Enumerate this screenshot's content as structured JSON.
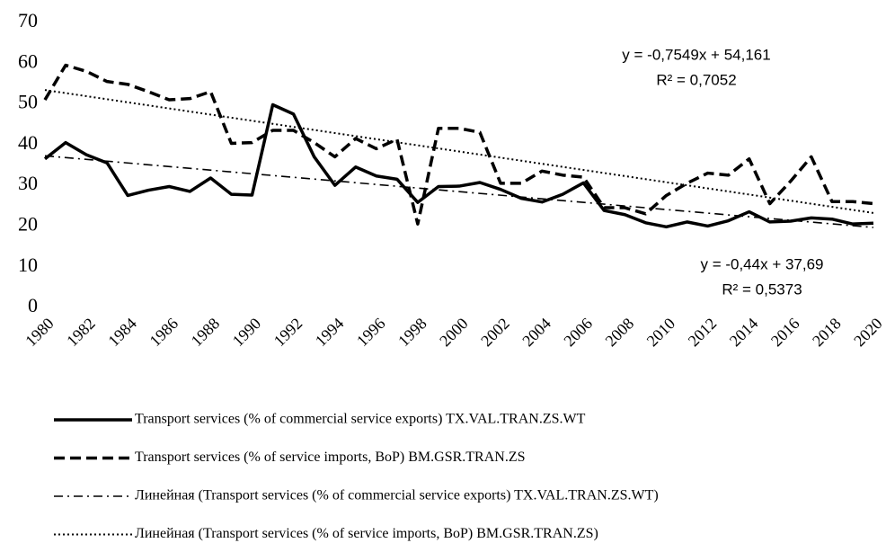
{
  "chart_data": {
    "type": "line",
    "x": [
      1980,
      1981,
      1982,
      1983,
      1984,
      1985,
      1986,
      1987,
      1988,
      1989,
      1990,
      1991,
      1992,
      1993,
      1994,
      1995,
      1996,
      1997,
      1998,
      1999,
      2000,
      2001,
      2002,
      2003,
      2004,
      2005,
      2006,
      2007,
      2008,
      2009,
      2010,
      2011,
      2012,
      2013,
      2014,
      2015,
      2016,
      2017,
      2018,
      2019,
      2020
    ],
    "xlim": [
      1980,
      2020
    ],
    "xticks": [
      1980,
      1982,
      1984,
      1986,
      1988,
      1990,
      1992,
      1994,
      1996,
      1998,
      2000,
      2002,
      2004,
      2006,
      2008,
      2010,
      2012,
      2014,
      2016,
      2018,
      2020
    ],
    "ylim": [
      0,
      70
    ],
    "yticks": [
      0,
      10,
      20,
      30,
      40,
      50,
      60,
      70
    ],
    "grid": false,
    "legend": "bottom",
    "series": [
      {
        "name": "Transport services (% of commercial service exports) TX.VAL.TRAN.ZS.WT",
        "color": "#000000",
        "style": "solid",
        "values": [
          36.5,
          40.5,
          37.5,
          35.5,
          27.5,
          28.8,
          29.7,
          28.5,
          31.8,
          27.8,
          27.6,
          49.8,
          47.5,
          37,
          30,
          34.5,
          32.3,
          31.5,
          25.8,
          29.7,
          29.8,
          30.7,
          29,
          26.8,
          25.9,
          27.8,
          30.6,
          23.8,
          22.8,
          20.8,
          19.8,
          21,
          20,
          21.3,
          23.5,
          21,
          21.2,
          22,
          21.7,
          20.5,
          20.7
        ]
      },
      {
        "name": "Transport services (% of service imports, BoP) BM.GSR.TRAN.ZS",
        "color": "#000000",
        "style": "dashed",
        "values": [
          51,
          59.5,
          58,
          55.5,
          54.8,
          53,
          51,
          51.3,
          53,
          40.3,
          40.5,
          43.5,
          43.5,
          40.5,
          37,
          41.5,
          39,
          41.3,
          20.5,
          44,
          44,
          43,
          30.5,
          30.5,
          33.5,
          32.5,
          32,
          24.5,
          24.5,
          23,
          27.5,
          30.5,
          33,
          32.5,
          36.5,
          25.5,
          31,
          37,
          26,
          26,
          25.5
        ]
      },
      {
        "name": "Линейная (Transport services (% of commercial service exports) TX.VAL.TRAN.ZS.WT)",
        "color": "#000000",
        "style": "dashdot",
        "x": [
          1980,
          2020
        ],
        "values": [
          37.25,
          19.65
        ]
      },
      {
        "name": "Линейная (Transport services (% of service imports, BoP) BM.GSR.TRAN.ZS)",
        "color": "#000000",
        "style": "dotted",
        "x": [
          1980,
          2020
        ],
        "values": [
          53.41,
          23.21
        ]
      }
    ],
    "annotations": [
      "y = -0,7549x + 54,161",
      "R² = 0,7052",
      "y = -0,44x + 37,69",
      "R² = 0,5373"
    ]
  }
}
